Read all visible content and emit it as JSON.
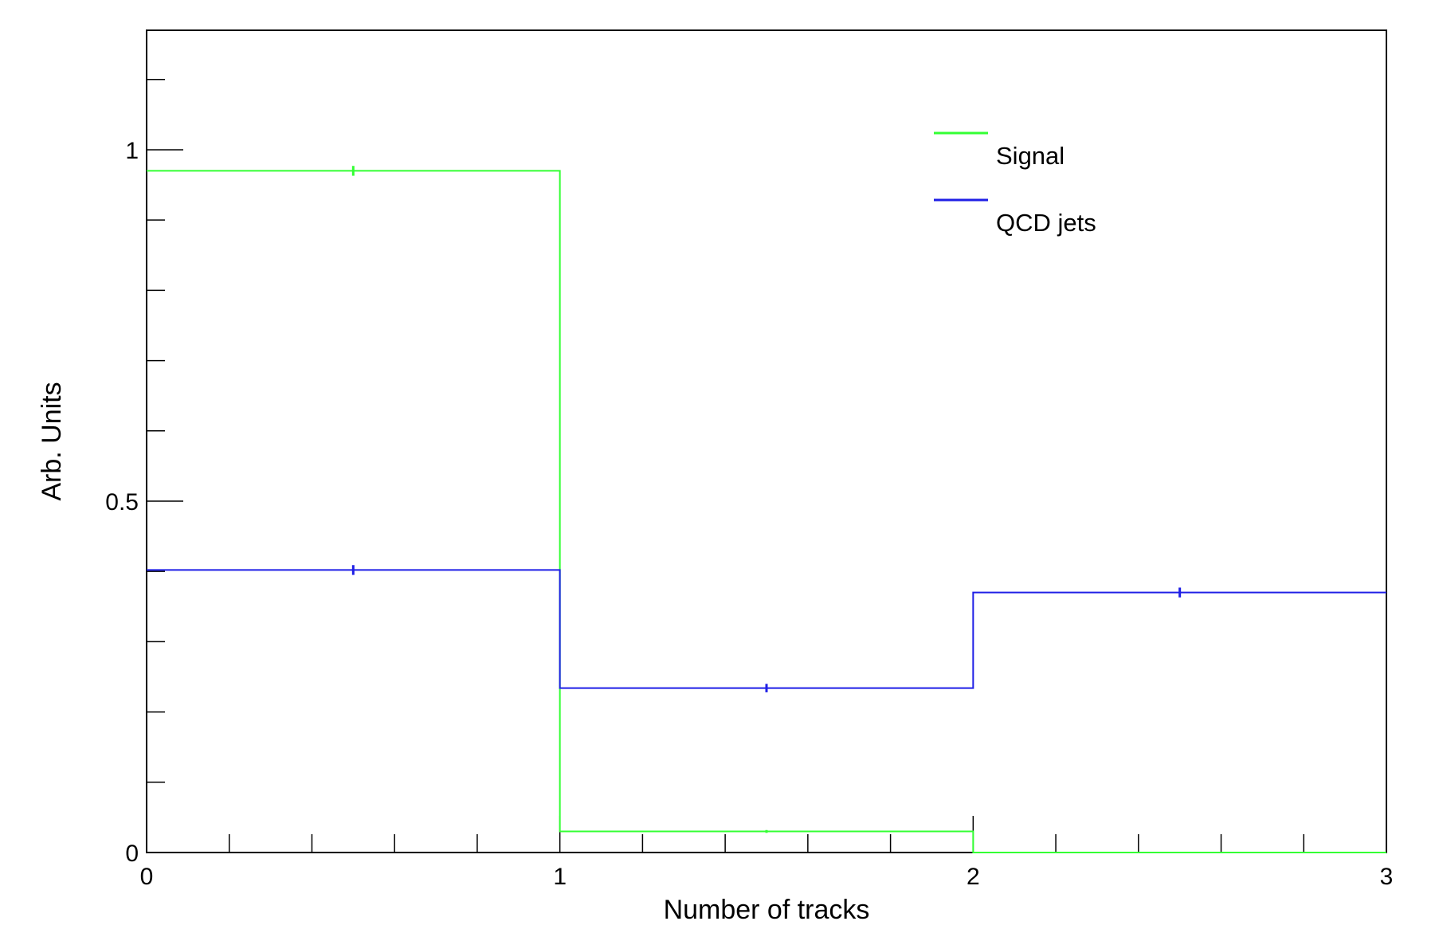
{
  "chart_data": {
    "type": "histogram",
    "xlabel": "Number of tracks",
    "ylabel": "Arb. Units",
    "xlim": [
      0,
      3
    ],
    "ylim": [
      0,
      1.17
    ],
    "bin_edges": [
      0,
      1,
      2,
      3
    ],
    "x_ticks": [
      {
        "value": 0,
        "label": "0"
      },
      {
        "value": 1,
        "label": "1"
      },
      {
        "value": 2,
        "label": "2"
      },
      {
        "value": 3,
        "label": "3"
      }
    ],
    "y_ticks": [
      {
        "value": 0,
        "label": "0"
      },
      {
        "value": 0.5,
        "label": "0.5"
      },
      {
        "value": 1,
        "label": "1"
      }
    ],
    "legend_position": "top-right",
    "series": [
      {
        "name": "Signal",
        "color": "#33ff33",
        "values": [
          0.97,
          0.03,
          0.0
        ],
        "errors": [
          0.007,
          0.002,
          0.0
        ]
      },
      {
        "name": "QCD jets",
        "color": "#1f1fe6",
        "values": [
          0.402,
          0.234,
          0.37
        ],
        "errors": [
          0.007,
          0.006,
          0.007
        ]
      }
    ]
  }
}
